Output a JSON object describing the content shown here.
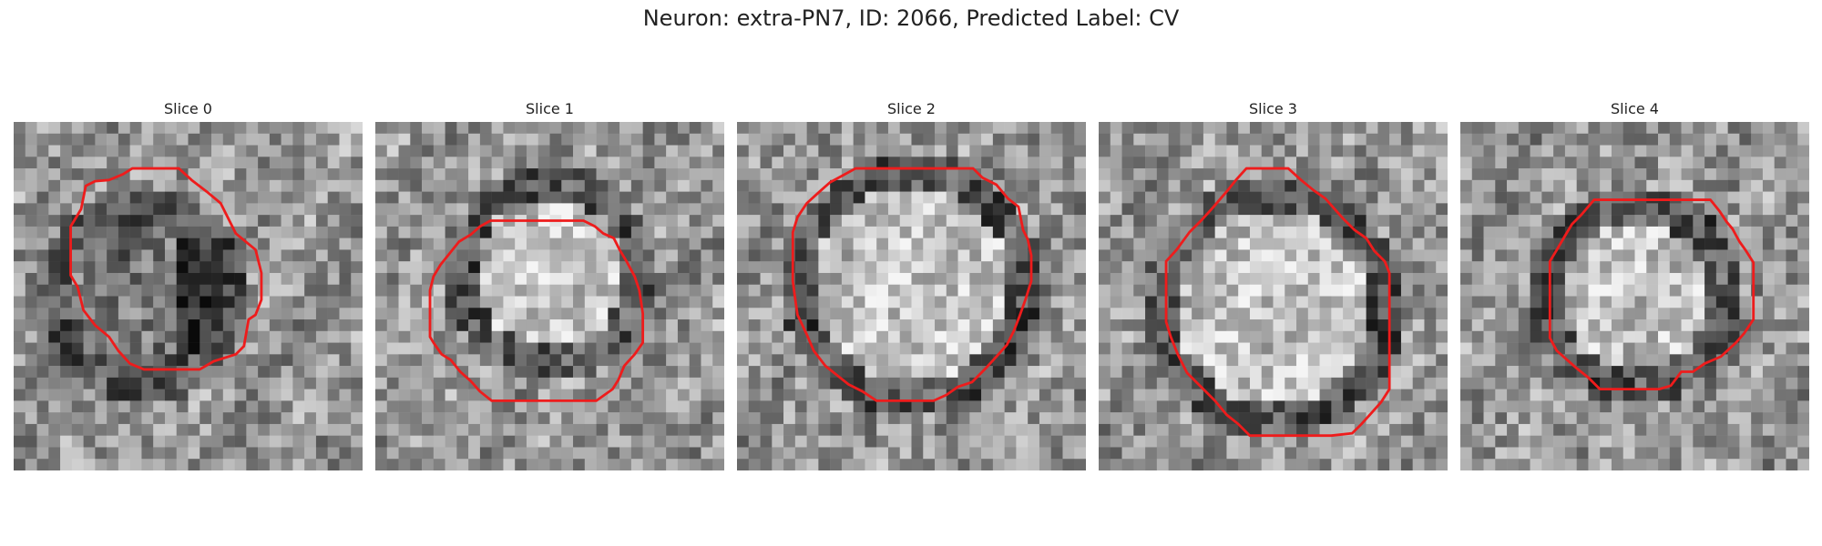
{
  "figure": {
    "title": "Neuron: extra-PN7, ID: 2066, Predicted Label: CV"
  },
  "panels": [
    {
      "title": "Slice 0"
    },
    {
      "title": "Slice 1"
    },
    {
      "title": "Slice 2"
    },
    {
      "title": "Slice 3"
    },
    {
      "title": "Slice 4"
    }
  ],
  "colors": {
    "contour": "#ee1c1c",
    "background": "#ffffff"
  }
}
